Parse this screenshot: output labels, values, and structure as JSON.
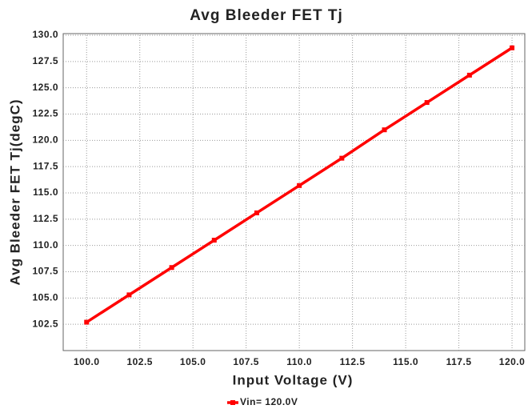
{
  "chart_data": {
    "type": "line",
    "title": "Avg Bleeder FET Tj",
    "x_label": "Input Voltage (V)",
    "y_label": "Avg Bleeder FET Tj(degC)",
    "x": [
      100,
      102,
      104,
      106,
      108,
      110,
      112,
      114,
      116,
      118,
      120
    ],
    "series": [
      {
        "name": "Vin= 120.0V",
        "color": "#ff0000",
        "values": [
          102.7,
          105.3,
          107.9,
          110.5,
          113.1,
          115.7,
          118.3,
          121.0,
          123.6,
          126.2,
          128.8
        ]
      }
    ],
    "xlim": [
      98.9,
      120.6
    ],
    "ylim": [
      100,
      130
    ],
    "xticks": [
      {
        "value": 100,
        "label": "100.0"
      },
      {
        "value": 102.5,
        "label": "102.5"
      },
      {
        "value": 105,
        "label": "105.0"
      },
      {
        "value": 107.5,
        "label": "107.5"
      },
      {
        "value": 110,
        "label": "110.0"
      },
      {
        "value": 112.5,
        "label": "112.5"
      },
      {
        "value": 115,
        "label": "115.0"
      },
      {
        "value": 117.5,
        "label": "117.5"
      },
      {
        "value": 120,
        "label": "120.0"
      }
    ],
    "yticks": [
      {
        "value": 102.5,
        "label": "102.5"
      },
      {
        "value": 105,
        "label": "105.0"
      },
      {
        "value": 107.5,
        "label": "107.5"
      },
      {
        "value": 110,
        "label": "110.0"
      },
      {
        "value": 112.5,
        "label": "112.5"
      },
      {
        "value": 115,
        "label": "115.0"
      },
      {
        "value": 117.5,
        "label": "117.5"
      },
      {
        "value": 120,
        "label": "120.0"
      },
      {
        "value": 122.5,
        "label": "122.5"
      },
      {
        "value": 125,
        "label": "125.0"
      },
      {
        "value": 127.5,
        "label": "127.5"
      },
      {
        "value": 130,
        "label": "130.0"
      }
    ],
    "grid": true
  }
}
